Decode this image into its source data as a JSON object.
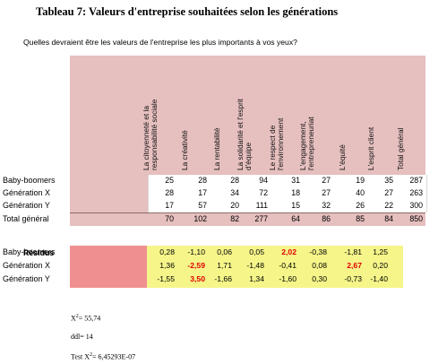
{
  "title": "Tableau 7: Valeurs d'entreprise souhaitées selon les générations",
  "question": "Quelles devraient être les valeurs de l'entreprise les plus importants à vos yeux?",
  "columns": [
    [
      "La citoyenneté et la",
      "responsabilité sociale"
    ],
    [
      "La créativité"
    ],
    [
      "La rentabilité"
    ],
    [
      "La solidarité et l'esprit",
      "d'équipe"
    ],
    [
      "Le respect de",
      "l'environnement"
    ],
    [
      "L'engagement,",
      "l'entrepreneuriat"
    ],
    [
      "L'équité"
    ],
    [
      "L'esprit client"
    ],
    [
      "Total général"
    ]
  ],
  "rows": [
    {
      "label": "Baby-boomers",
      "values": [
        "25",
        "28",
        "28",
        "94",
        "31",
        "27",
        "19",
        "35",
        "287"
      ]
    },
    {
      "label": "Génération X",
      "values": [
        "28",
        "17",
        "34",
        "72",
        "18",
        "27",
        "40",
        "27",
        "263"
      ]
    },
    {
      "label": "Génération Y",
      "values": [
        "17",
        "57",
        "20",
        "111",
        "15",
        "32",
        "26",
        "22",
        "300"
      ]
    }
  ],
  "total": {
    "label": "Total général",
    "values": [
      "70",
      "102",
      "82",
      "277",
      "64",
      "86",
      "85",
      "84",
      "850"
    ]
  },
  "residus": {
    "title": "Résidus",
    "rows": [
      {
        "label": "Baby-boomers",
        "values": [
          "0,28",
          "-1,10",
          "0,06",
          "0,05",
          "2,02",
          "-0,38",
          "-1,81",
          "1,25"
        ],
        "highlight": [
          4
        ]
      },
      {
        "label": "Génération X",
        "values": [
          "1,36",
          "-2,59",
          "1,71",
          "-1,48",
          "-0,41",
          "0,08",
          "2,67",
          "0,20"
        ],
        "highlight": [
          1,
          6
        ]
      },
      {
        "label": "Génération Y",
        "values": [
          "-1,55",
          "3,50",
          "-1,66",
          "1,34",
          "-1,60",
          "0,30",
          "-0,73",
          "-1,40"
        ],
        "highlight": [
          1
        ]
      }
    ],
    "colors": {
      "labels_bg": "#f08f8f",
      "values_bg": "#f5f58a",
      "highlight_text": "#e00000"
    }
  },
  "stats": {
    "chi2_prefix": "X",
    "chi2_sup": "2",
    "chi2_value": "= 55,74",
    "ddl": "ddl= 14",
    "test_prefix": "Test X",
    "test_sup": "2",
    "test_value": "= 6,45293E-07"
  }
}
